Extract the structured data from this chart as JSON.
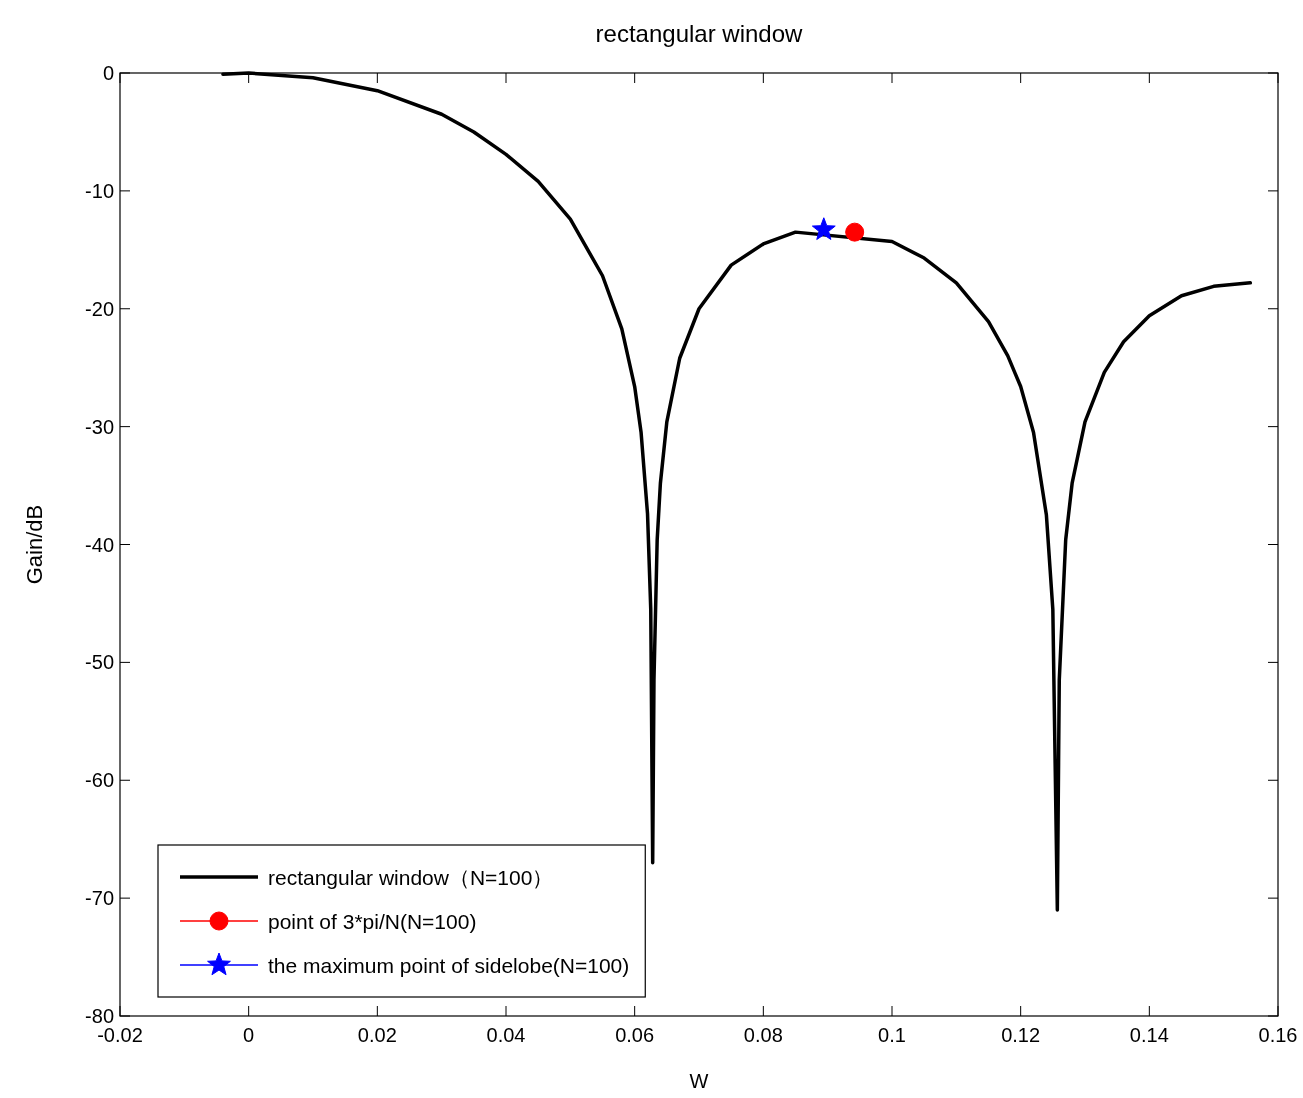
{
  "chart_data": {
    "type": "line",
    "title": "rectangular window",
    "xlabel": "W",
    "ylabel": "Gain/dB",
    "xlim": [
      -0.02,
      0.16
    ],
    "xticks": [
      {
        "value": -0.02,
        "label": "-0.02"
      },
      0,
      {
        "value": 0.02,
        "label": "0.02"
      },
      {
        "value": 0.04,
        "label": "0.04"
      },
      {
        "value": 0.06,
        "label": "0.06"
      },
      {
        "value": 0.08,
        "label": "0.08"
      },
      {
        "value": 0.1,
        "label": "0.1"
      },
      {
        "value": 0.12,
        "label": "0.12"
      },
      {
        "value": 0.14,
        "label": "0.14"
      },
      {
        "value": 0.16,
        "label": "0.16"
      }
    ],
    "ylim": [
      -80,
      0
    ],
    "yticks": [
      -80,
      -70,
      -60,
      -50,
      -40,
      -30,
      -20,
      -10,
      0
    ],
    "grid": false,
    "legend": "bottom left",
    "series": [
      {
        "name": "rectangular window（N=100）",
        "color": "#000000",
        "marker": "none",
        "line_style": "solid",
        "x": [
          -0.004,
          0,
          0.01,
          0.02,
          0.03,
          0.035,
          0.04,
          0.045,
          0.05,
          0.055,
          0.058,
          0.06,
          0.061,
          0.062,
          0.0625,
          0.0628,
          0.063,
          0.0635,
          0.064,
          0.065,
          0.067,
          0.07,
          0.075,
          0.08,
          0.085,
          0.1,
          0.105,
          0.11,
          0.115,
          0.118,
          0.12,
          0.122,
          0.124,
          0.125,
          0.1257,
          0.126,
          0.127,
          0.128,
          0.13,
          0.133,
          0.136,
          0.14,
          0.145,
          0.15,
          0.1557
        ],
        "values": [
          -0.1,
          0,
          -0.4,
          -1.5,
          -3.5,
          -5,
          -6.9,
          -9.2,
          -12.4,
          -17.2,
          -21.7,
          -26.6,
          -30.5,
          -37.4,
          -45.5,
          -67,
          -51.5,
          -39.6,
          -34.8,
          -29.6,
          -24.2,
          -20,
          -16.3,
          -14.5,
          -13.5,
          -14.3,
          -15.7,
          -17.8,
          -21.1,
          -24,
          -26.6,
          -30.5,
          -37.5,
          -45.5,
          -71,
          -51.5,
          -39.6,
          -34.8,
          -29.6,
          -25.4,
          -22.8,
          -20.6,
          -18.9,
          -18.1,
          -17.8
        ]
      },
      {
        "name": "point of 3*pi/N(N=100)",
        "type": "scatter",
        "color": "#ff0000",
        "marker": "circle",
        "x": [
          0.0942
        ],
        "values": [
          -13.5
        ]
      },
      {
        "name": "the maximum point of sidelobe(N=100)",
        "type": "scatter",
        "color": "#0000ff",
        "marker": "star",
        "x": [
          0.0894
        ],
        "values": [
          -13.3
        ]
      }
    ]
  }
}
